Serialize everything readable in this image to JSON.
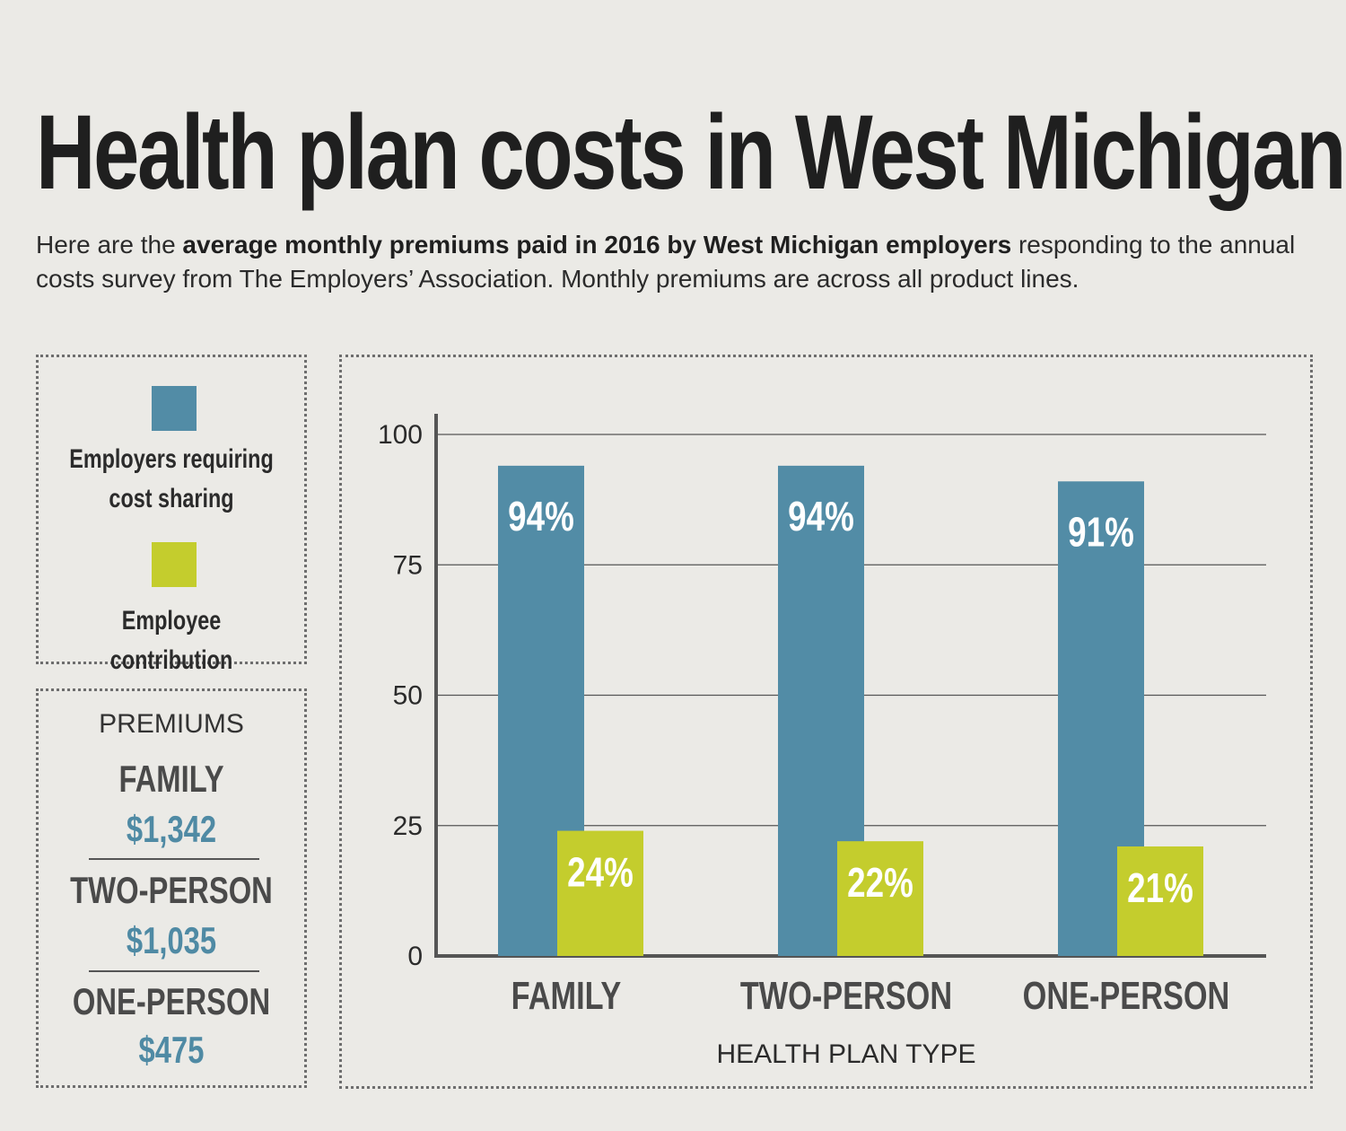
{
  "title": "Health plan costs in West Michigan",
  "subtitle": {
    "lead": "Here are the ",
    "bold": "average monthly premiums paid in 2016 by West Michigan employers",
    "rest": " responding to the annual costs survey from The Employers’ Association. Monthly premiums are across all product lines."
  },
  "legend": {
    "items": [
      {
        "label_line1": "Employers requiring",
        "label_line2": "cost sharing",
        "color": "#528ca6"
      },
      {
        "label_line1": "Employee contribution",
        "label_line2": "",
        "color": "#c4cd2d"
      }
    ]
  },
  "premiums": {
    "heading": "PREMIUMS",
    "rows": [
      {
        "type": "FAMILY",
        "value": "$1,342"
      },
      {
        "type": "TWO-PERSON",
        "value": "$1,035"
      },
      {
        "type": "ONE-PERSON",
        "value": "$475"
      }
    ]
  },
  "chart_data": {
    "type": "bar",
    "categories": [
      "FAMILY",
      "TWO-PERSON",
      "ONE-PERSON"
    ],
    "series": [
      {
        "name": "Employers requiring cost sharing",
        "values": [
          94,
          94,
          91
        ],
        "labels": [
          "94%",
          "94%",
          "91%"
        ],
        "color": "#528ca6"
      },
      {
        "name": "Employee contribution",
        "values": [
          24,
          22,
          21
        ],
        "labels": [
          "24%",
          "22%",
          "21%"
        ],
        "color": "#c4cd2d"
      }
    ],
    "xlabel": "HEALTH PLAN TYPE",
    "ylabel": "",
    "ylim": [
      0,
      100
    ],
    "yticks": [
      "0",
      "25",
      "50",
      "75",
      "100"
    ],
    "grid": true
  }
}
